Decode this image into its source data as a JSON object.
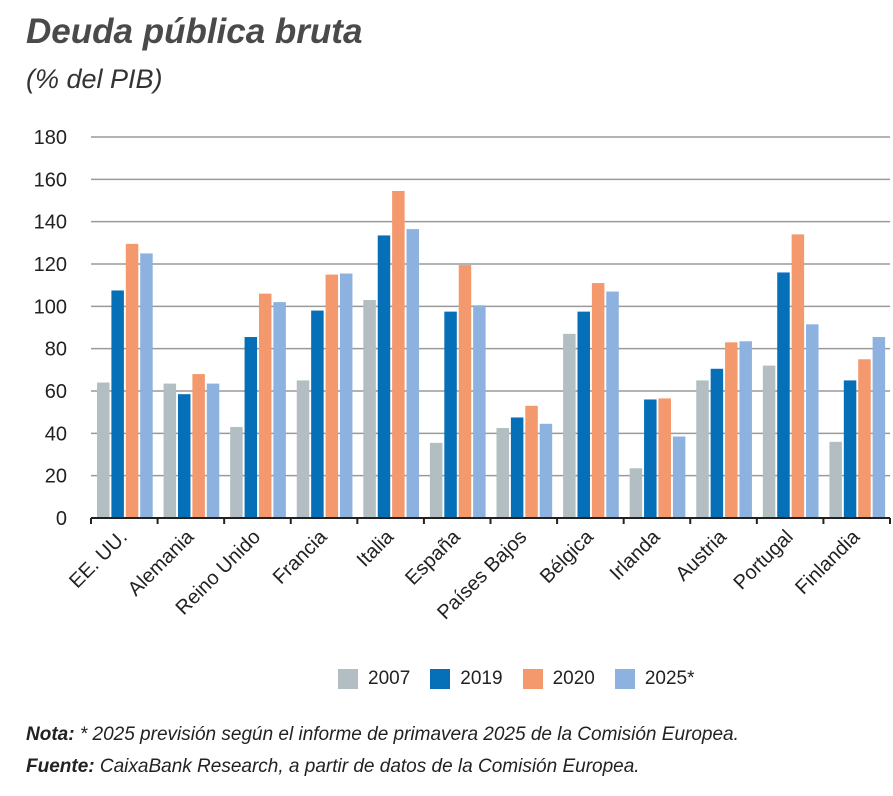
{
  "chart_data": {
    "type": "bar",
    "title": "Deuda pública bruta",
    "subtitle": "(% del PIB)",
    "xlabel": "",
    "ylabel": "",
    "ylim": [
      0,
      180
    ],
    "yticks": [
      0,
      20,
      40,
      60,
      80,
      100,
      120,
      140,
      160,
      180
    ],
    "grid": true,
    "legend_position": "bottom",
    "categories": [
      "EE. UU.",
      "Alemania",
      "Reino Unido",
      "Francia",
      "Italia",
      "España",
      "Países Bajos",
      "Bélgica",
      "Irlanda",
      "Austria",
      "Portugal",
      "Finlandia"
    ],
    "series": [
      {
        "name": "2007",
        "color": "#b2bec2",
        "values": [
          64,
          63.5,
          43,
          65,
          103,
          35.5,
          42.5,
          87,
          23.5,
          65,
          72,
          36
        ]
      },
      {
        "name": "2019",
        "color": "#0570b8",
        "values": [
          107.5,
          58.5,
          85.5,
          98,
          133.5,
          97.5,
          47.5,
          97.5,
          56,
          70.5,
          116,
          65
        ]
      },
      {
        "name": "2020",
        "color": "#f3996d",
        "values": [
          129.5,
          68,
          106,
          115,
          154.5,
          119.5,
          53,
          111,
          56.5,
          83,
          134,
          75
        ]
      },
      {
        "name": "2025*",
        "color": "#8eb2e0",
        "values": [
          125,
          63.5,
          102,
          115.5,
          136.5,
          100.5,
          44.5,
          107,
          38.5,
          83.5,
          91.5,
          85.5
        ]
      }
    ]
  },
  "notes": {
    "nota_label": "Nota:",
    "nota_text": " * 2025 previsión según el informe de primavera 2025 de la Comisión Europea.",
    "fuente_label": "Fuente:",
    "fuente_text": " CaixaBank Research, a partir de datos de la Comisión Europea."
  }
}
